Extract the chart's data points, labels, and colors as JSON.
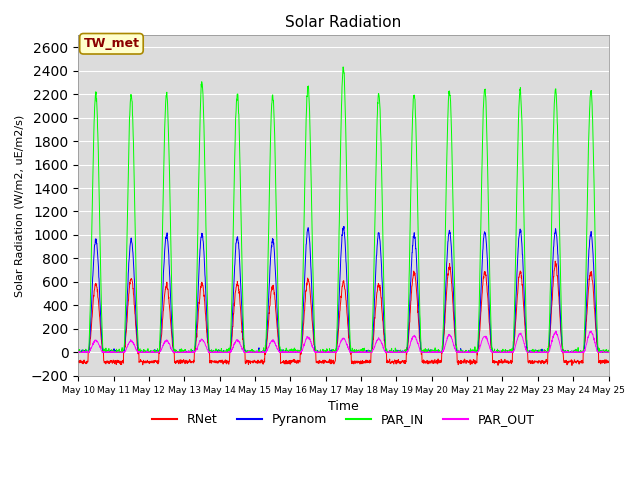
{
  "title": "Solar Radiation",
  "ylabel": "Solar Radiation (W/m2, uE/m2/s)",
  "xlabel": "Time",
  "ylim": [
    -200,
    2700
  ],
  "yticks": [
    -200,
    0,
    200,
    400,
    600,
    800,
    1000,
    1200,
    1400,
    1600,
    1800,
    2000,
    2200,
    2400,
    2600
  ],
  "annotation": "TW_met",
  "colors": {
    "RNet": "#ff0000",
    "Pyranom": "#0000ff",
    "PAR_IN": "#00ff00",
    "PAR_OUT": "#ff00ff"
  },
  "background_color": "#dcdcdc",
  "n_days": 15,
  "start_day": 10,
  "legend_labels": [
    "RNet",
    "Pyranom",
    "PAR_IN",
    "PAR_OUT"
  ],
  "par_in_peaks": [
    2200,
    2190,
    2200,
    2300,
    2200,
    2190,
    2270,
    2420,
    2200,
    2200,
    2230,
    2240,
    2230,
    2240,
    2230
  ],
  "pyranom_peaks": [
    960,
    960,
    1000,
    1010,
    980,
    960,
    1050,
    1060,
    1010,
    1000,
    1030,
    1030,
    1040,
    1040,
    1010
  ],
  "rnet_peaks": [
    580,
    630,
    570,
    590,
    590,
    560,
    620,
    600,
    580,
    680,
    730,
    680,
    680,
    750,
    680
  ],
  "par_out_peaks": [
    100,
    100,
    100,
    110,
    105,
    100,
    130,
    120,
    115,
    140,
    150,
    140,
    160,
    170,
    180
  ]
}
